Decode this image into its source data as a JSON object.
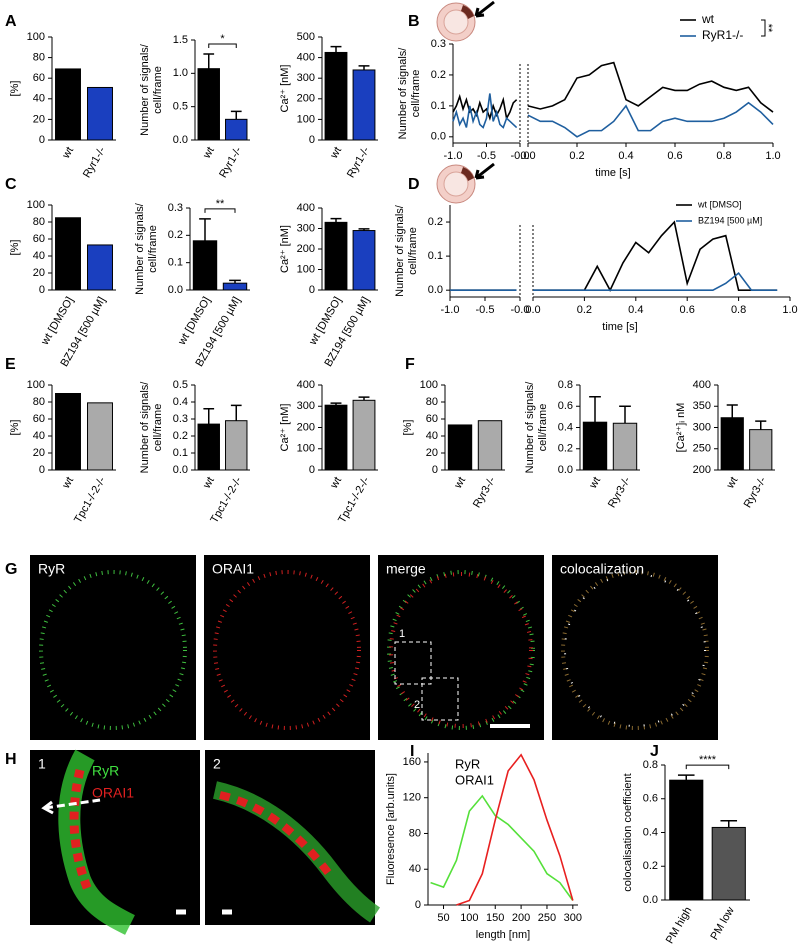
{
  "chart_data": [
    {
      "type": "bar",
      "panel": "A",
      "ylabel": [
        "[%]"
      ],
      "categories": [
        "wt",
        "Ryr1-/-"
      ],
      "values": [
        69,
        51
      ],
      "colors": [
        "#000000",
        "#1a3fbf"
      ],
      "ylim": [
        0,
        100
      ],
      "yticks": [
        0,
        20,
        40,
        60,
        80,
        100
      ]
    },
    {
      "type": "bar",
      "ylabel": [
        "Number of signals/",
        "cell/frame"
      ],
      "categories": [
        "wt",
        "Ryr1-/-"
      ],
      "values": [
        1.07,
        0.31
      ],
      "errors": [
        0.22,
        0.12
      ],
      "colors": [
        "#000000",
        "#1a3fbf"
      ],
      "ylim": [
        0,
        1.5
      ],
      "yticks": [
        {
          "value": 0,
          "label": "0.0"
        },
        0.5,
        {
          "value": 1,
          "label": "1.0"
        },
        1.5
      ],
      "significance": "*"
    },
    {
      "type": "bar",
      "ylabel": [
        "Ca²⁺ [nM]"
      ],
      "categories": [
        "wt",
        "Ryr1-/-"
      ],
      "values": [
        425,
        340
      ],
      "errors": [
        28,
        20
      ],
      "colors": [
        "#000000",
        "#1a3fbf"
      ],
      "ylim": [
        0,
        500
      ],
      "yticks": [
        0,
        100,
        200,
        300,
        400,
        500
      ]
    },
    {
      "type": "line",
      "panel": "B",
      "ylabel": [
        "Number of signals/",
        "cell/frame"
      ],
      "xlabel": "time [s]",
      "significance": "**",
      "xlim": [
        [
          -1,
          0
        ],
        [
          0,
          1
        ]
      ],
      "xticks": [
        [
          {
            "value": -1,
            "label": "-1.0"
          },
          -0.5,
          {
            "value": 0,
            "label": "-0.0"
          }
        ],
        [
          {
            "value": 0,
            "label": "0.0"
          },
          0.2,
          0.4,
          0.6,
          0.8,
          {
            "value": 1,
            "label": "1.0"
          }
        ]
      ],
      "ylim": [
        -0.02,
        0.3
      ],
      "yticks": [
        {
          "value": 0,
          "label": "0.0"
        },
        0.1,
        0.2,
        0.3
      ],
      "x": [
        [
          -1,
          -0.95,
          -0.9,
          -0.85,
          -0.8,
          -0.75,
          -0.7,
          -0.65,
          -0.6,
          -0.55,
          -0.5,
          -0.45,
          -0.4,
          -0.35,
          -0.3,
          -0.25,
          -0.2,
          -0.15,
          -0.1,
          -0.05
        ],
        [
          0,
          0.05,
          0.1,
          0.15,
          0.2,
          0.25,
          0.3,
          0.35,
          0.4,
          0.45,
          0.5,
          0.55,
          0.6,
          0.65,
          0.7,
          0.75,
          0.8,
          0.85,
          0.9,
          0.95,
          1
        ]
      ],
      "series": [
        {
          "name": "wt",
          "color": "#000000",
          "values": [
            [
              0.08,
              0.1,
              0.13,
              0.09,
              0.12,
              0.08,
              0.09,
              0.07,
              0.11,
              0.08,
              0.09,
              0.06,
              0.1,
              0.07,
              0.09,
              0.12,
              0.06,
              0.08,
              0.11,
              0.12
            ],
            [
              0.1,
              0.09,
              0.1,
              0.12,
              0.19,
              0.2,
              0.23,
              0.24,
              0.12,
              0.1,
              0.13,
              0.16,
              0.15,
              0.15,
              0.17,
              0.18,
              0.16,
              0.15,
              0.16,
              0.11,
              0.08
            ]
          ]
        },
        {
          "name": "RyR1-/-",
          "color": "#1f5f9f",
          "values": [
            [
              0.05,
              0.08,
              0.04,
              0.06,
              0.03,
              0.1,
              0.05,
              0.08,
              0.04,
              0.03,
              0.06,
              0.14,
              0.05,
              0.08,
              0.04,
              0.03,
              0.06,
              0.05,
              0.04,
              0.03
            ],
            [
              0.07,
              0.05,
              0.05,
              0.03,
              0,
              0.02,
              0.02,
              0.05,
              0.1,
              0.02,
              0.02,
              0.05,
              0.06,
              0.05,
              0.05,
              0.05,
              0.06,
              0.08,
              0.11,
              0.08,
              0.04
            ]
          ]
        }
      ]
    },
    {
      "type": "bar",
      "panel": "C",
      "ylabel": [
        "[%]"
      ],
      "categories": [
        "wt [DMSO]",
        "BZ194 [500 µM]"
      ],
      "values": [
        85,
        53
      ],
      "colors": [
        "#000000",
        "#1a3fbf"
      ],
      "ylim": [
        0,
        100
      ],
      "yticks": [
        0,
        20,
        40,
        60,
        80,
        100
      ]
    },
    {
      "type": "bar",
      "ylabel": [
        "Number of signals/",
        "cell/frame"
      ],
      "categories": [
        "wt [DMSO]",
        "BZ194 [500 µM]"
      ],
      "values": [
        0.18,
        0.025
      ],
      "errors": [
        0.08,
        0.01
      ],
      "colors": [
        "#000000",
        "#1a3fbf"
      ],
      "ylim": [
        0,
        0.3
      ],
      "yticks": [
        {
          "value": 0,
          "label": "0.0"
        },
        0.1,
        0.2,
        0.3
      ],
      "significance": "**"
    },
    {
      "type": "bar",
      "ylabel": [
        "Ca²⁺ [nM]"
      ],
      "categories": [
        "wt [DMSO]",
        "BZ194 [500 µM]"
      ],
      "values": [
        330,
        290
      ],
      "errors": [
        18,
        8
      ],
      "colors": [
        "#000000",
        "#1a3fbf"
      ],
      "ylim": [
        0,
        400
      ],
      "yticks": [
        0,
        100,
        200,
        300,
        400
      ]
    },
    {
      "type": "line",
      "panel": "D",
      "ylabel": [
        "Number of signals/",
        "cell/frame"
      ],
      "xlabel": "time [s]",
      "xlim": [
        [
          -1,
          0
        ],
        [
          0,
          1
        ]
      ],
      "xticks": [
        [
          {
            "value": -1,
            "label": "-1.0"
          },
          -0.5,
          {
            "value": 0,
            "label": "-0.0"
          }
        ],
        [
          {
            "value": 0,
            "label": "0.0"
          },
          0.2,
          0.4,
          0.6,
          0.8,
          {
            "value": 1,
            "label": "1.0"
          }
        ]
      ],
      "ylim": [
        -0.02,
        0.25
      ],
      "yticks": [
        {
          "value": 0,
          "label": "0.0"
        },
        0.1,
        0.2
      ],
      "x": [
        [
          -1,
          -0.95,
          -0.9,
          -0.85,
          -0.8,
          -0.75,
          -0.7,
          -0.65,
          -0.6,
          -0.55,
          -0.5,
          -0.45,
          -0.4,
          -0.35,
          -0.3,
          -0.25,
          -0.2,
          -0.15,
          -0.1,
          -0.05
        ],
        [
          0,
          0.05,
          0.1,
          0.15,
          0.2,
          0.25,
          0.3,
          0.35,
          0.4,
          0.45,
          0.5,
          0.55,
          0.6,
          0.65,
          0.7,
          0.75,
          0.8,
          0.85,
          0.9,
          0.95
        ]
      ],
      "series": [
        {
          "name": "wt [DMSO]",
          "color": "#000000",
          "values": [
            [
              0,
              0,
              0,
              0,
              0,
              0,
              0,
              0,
              0,
              0,
              0,
              0,
              0,
              0,
              0,
              0,
              0,
              0,
              0,
              0
            ],
            [
              0,
              0,
              0,
              0,
              0,
              0.07,
              0,
              0.08,
              0.14,
              0.11,
              0.16,
              0.2,
              0.02,
              0.12,
              0.15,
              0.16,
              0,
              0,
              0,
              0
            ]
          ]
        },
        {
          "name": "BZ194 [500 µM]",
          "color": "#1f5f9f",
          "values": [
            [
              0,
              0,
              0,
              0,
              0,
              0,
              0,
              0,
              0,
              0,
              0,
              0,
              0,
              0,
              0,
              0,
              0,
              0,
              0,
              0
            ],
            [
              0,
              0,
              0,
              0,
              0,
              0,
              0,
              0,
              0,
              0,
              0,
              0,
              0,
              0,
              0,
              0.02,
              0.05,
              0,
              0,
              0
            ]
          ]
        }
      ]
    },
    {
      "type": "bar",
      "panel": "E",
      "ylabel": [
        "[%]"
      ],
      "categories": [
        "wt",
        "Tpc1-/-2-/-"
      ],
      "values": [
        90,
        79
      ],
      "colors": [
        "#000000",
        "#aaaaaa"
      ],
      "ylim": [
        0,
        100
      ],
      "yticks": [
        0,
        20,
        40,
        60,
        80,
        100
      ]
    },
    {
      "type": "bar",
      "ylabel": [
        "Number of signals/",
        "cell/frame"
      ],
      "categories": [
        "wt",
        "Tpc1-/-2-/-"
      ],
      "values": [
        0.27,
        0.29
      ],
      "errors": [
        0.09,
        0.09
      ],
      "colors": [
        "#000000",
        "#aaaaaa"
      ],
      "ylim": [
        0,
        0.5
      ],
      "yticks": [
        {
          "value": 0,
          "label": "0.0"
        },
        0.1,
        0.2,
        0.3,
        0.4,
        0.5
      ]
    },
    {
      "type": "bar",
      "ylabel": [
        "Ca²⁺ [nM]"
      ],
      "categories": [
        "wt",
        "Tpc1-/-2-/-"
      ],
      "values": [
        305,
        328
      ],
      "errors": [
        10,
        15
      ],
      "colors": [
        "#000000",
        "#aaaaaa"
      ],
      "ylim": [
        0,
        400
      ],
      "yticks": [
        0,
        100,
        200,
        300,
        400
      ]
    },
    {
      "type": "bar",
      "panel": "F",
      "ylabel": [
        "[%]"
      ],
      "categories": [
        "wt",
        "Ryr3-/-"
      ],
      "values": [
        53,
        58
      ],
      "colors": [
        "#000000",
        "#aaaaaa"
      ],
      "ylim": [
        0,
        100
      ],
      "yticks": [
        0,
        20,
        40,
        60,
        80,
        100
      ]
    },
    {
      "type": "bar",
      "ylabel": [
        "Number of signals/",
        "cell/frame"
      ],
      "categories": [
        "wt",
        "Ryr3-/-"
      ],
      "values": [
        0.45,
        0.44
      ],
      "errors": [
        0.24,
        0.16
      ],
      "colors": [
        "#000000",
        "#aaaaaa"
      ],
      "ylim": [
        0,
        0.8
      ],
      "yticks": [
        {
          "value": 0,
          "label": "0.0"
        },
        0.2,
        0.4,
        0.6,
        0.8
      ]
    },
    {
      "type": "bar",
      "ylabel": [
        "[Ca²⁺]ᵢ nM"
      ],
      "categories": [
        "wt",
        "Ryr3-/-"
      ],
      "values": [
        323,
        295
      ],
      "errors": [
        30,
        20
      ],
      "colors": [
        "#000000",
        "#aaaaaa"
      ],
      "ylim": [
        200,
        400
      ],
      "yticks": [
        200,
        250,
        300,
        350,
        400
      ]
    },
    {
      "type": "line",
      "panel": "I",
      "ylabel": [
        "Fluoresence [arb.units]"
      ],
      "xlabel": "length [nm]",
      "xlim": [
        20,
        310
      ],
      "xticks": [
        50,
        100,
        150,
        200,
        250,
        300
      ],
      "ylim": [
        0,
        170
      ],
      "yticks": [
        0,
        40,
        80,
        120,
        160
      ],
      "x": [
        25,
        50,
        75,
        100,
        125,
        150,
        175,
        200,
        225,
        250,
        275,
        300
      ],
      "series": [
        {
          "name": "RyR",
          "color": "#55e03a",
          "values": [
            25,
            20,
            50,
            105,
            122,
            100,
            90,
            75,
            60,
            35,
            25,
            5
          ]
        },
        {
          "name": "ORAI1",
          "color": "#e82020",
          "values": [
            null,
            null,
            0,
            5,
            35,
            95,
            150,
            168,
            140,
            95,
            55,
            5
          ]
        }
      ]
    },
    {
      "type": "bar",
      "panel": "J",
      "ylabel": [
        "colocalisation coefficient"
      ],
      "categories": [
        "PM high",
        "PM low"
      ],
      "values": [
        0.71,
        0.43
      ],
      "errors": [
        0.03,
        0.04
      ],
      "colors": [
        "#000000",
        "#555555"
      ],
      "ylim": [
        0,
        0.8
      ],
      "yticks": [
        {
          "value": 0,
          "label": "0.0"
        },
        0.2,
        0.4,
        0.6,
        0.8
      ],
      "significance": "****"
    }
  ],
  "image_panels": {
    "G": {
      "letter": "G",
      "labels": [
        "RyR",
        "ORAI1",
        "merge",
        "colocalization"
      ],
      "insets": [
        "1",
        "2"
      ]
    },
    "H": {
      "letter": "H",
      "labels": [
        "1",
        "2"
      ],
      "legend": [
        "RyR",
        "ORAI1"
      ]
    }
  }
}
